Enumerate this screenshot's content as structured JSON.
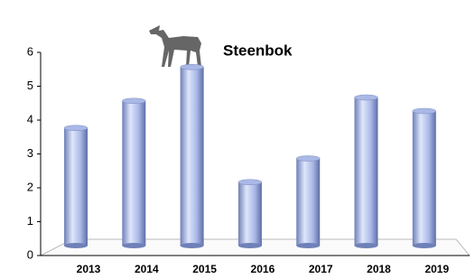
{
  "chart_data": {
    "type": "bar",
    "title": "Steenbok",
    "categories": [
      "2013",
      "2014",
      "2015",
      "2016",
      "2017",
      "2018",
      "2019"
    ],
    "values": [
      3.5,
      4.3,
      5.3,
      1.9,
      2.6,
      4.4,
      4.0
    ],
    "color": "#a9b8e6",
    "ylim": [
      0,
      6
    ],
    "yticks": [
      0,
      1,
      2,
      3,
      4,
      5,
      6
    ]
  }
}
